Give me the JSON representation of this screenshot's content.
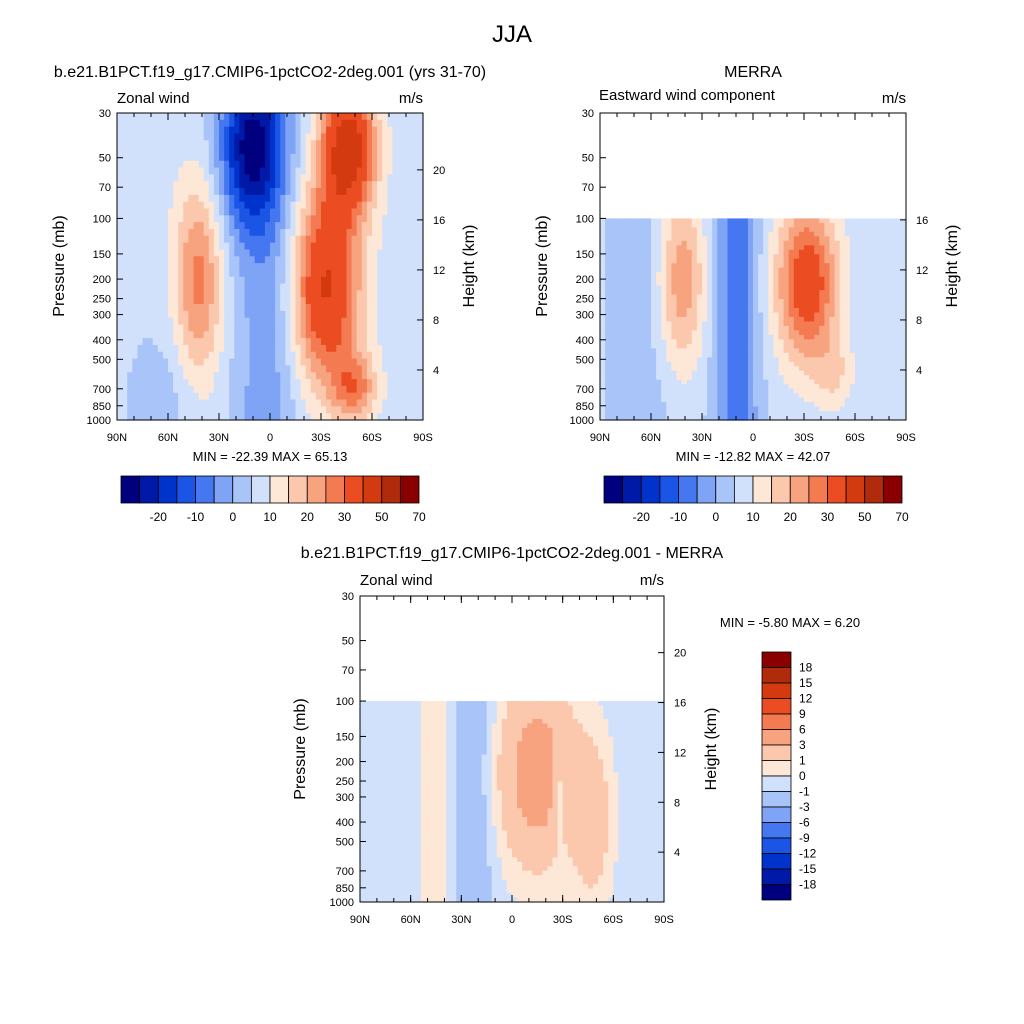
{
  "figure_title": "JJA",
  "chart_data": [
    {
      "type": "heatmap",
      "title": "b.e21.B1PCT.f19_g17.CMIP6-1pctCO2-2deg.001 (yrs 31-70)",
      "left_label": "Zonal wind",
      "units": "m/s",
      "ylabel": "Pressure (mb)",
      "ylabel_right": "Height (km)",
      "x_ticks": [
        "90N",
        "60N",
        "30N",
        "0",
        "30S",
        "60S",
        "90S"
      ],
      "y_ticks": [
        30,
        50,
        70,
        100,
        150,
        200,
        250,
        300,
        400,
        500,
        700,
        850,
        1000
      ],
      "y_ticks_right": [
        20,
        16,
        12,
        8,
        4
      ],
      "xlim": [
        90,
        -90
      ],
      "ylim": [
        1000,
        30
      ],
      "min_text": "MIN = -22.39  MAX =  65.13",
      "colorbar": {
        "orientation": "horizontal",
        "labels": [
          "-20",
          "-10",
          "0",
          "10",
          "20",
          "30",
          "50",
          "70"
        ]
      },
      "features": [
        {
          "lat": 42,
          "p": 200,
          "value": 23,
          "spread_lat": 9,
          "spread_logp": 0.3
        },
        {
          "lat": -32,
          "p": 200,
          "value": 55,
          "spread_lat": 12,
          "spread_logp": 0.3
        },
        {
          "lat": -45,
          "p": 45,
          "value": 62,
          "spread_lat": 10,
          "spread_logp": 0.22
        },
        {
          "lat": 12,
          "p": 40,
          "value": -22,
          "spread_lat": 12,
          "spread_logp": 0.22
        }
      ]
    },
    {
      "type": "heatmap",
      "title": "MERRA",
      "left_label": "Eastward wind component",
      "units": "m/s",
      "ylabel": "Pressure (mb)",
      "ylabel_right": "Height (km)",
      "x_ticks": [
        "90N",
        "60N",
        "30N",
        "0",
        "30S",
        "60S",
        "90S"
      ],
      "y_ticks": [
        30,
        50,
        70,
        100,
        150,
        200,
        250,
        300,
        400,
        500,
        700,
        850,
        1000
      ],
      "y_ticks_right": [
        16,
        12,
        8,
        4
      ],
      "xlim": [
        90,
        -90
      ],
      "ylim": [
        1000,
        30
      ],
      "data_top_p": 100,
      "min_text": "MIN = -12.82  MAX =  42.07",
      "colorbar": {
        "orientation": "horizontal",
        "labels": [
          "-20",
          "-10",
          "0",
          "10",
          "20",
          "30",
          "50",
          "70"
        ]
      }
    },
    {
      "type": "heatmap",
      "title": "b.e21.B1PCT.f19_g17.CMIP6-1pctCO2-2deg.001 - MERRA",
      "left_label": "Zonal wind",
      "units": "m/s",
      "ylabel": "Pressure (mb)",
      "ylabel_right": "Height (km)",
      "x_ticks": [
        "90N",
        "60N",
        "30N",
        "0",
        "30S",
        "60S",
        "90S"
      ],
      "y_ticks": [
        30,
        50,
        70,
        100,
        150,
        200,
        250,
        300,
        400,
        500,
        700,
        850,
        1000
      ],
      "y_ticks_right": [
        20,
        16,
        12,
        8,
        4
      ],
      "xlim": [
        90,
        -90
      ],
      "ylim": [
        1000,
        30
      ],
      "data_top_p": 100,
      "min_text": "MIN =  -5.80  MAX =   6.20",
      "colorbar": {
        "orientation": "vertical",
        "labels": [
          "18",
          "15",
          "12",
          "9",
          "6",
          "3",
          "1",
          "0",
          "-1",
          "-3",
          "-6",
          "-9",
          "-12",
          "-15",
          "-18"
        ]
      }
    }
  ],
  "colors": {
    "palette": [
      "#00007f",
      "#0019a6",
      "#0033cc",
      "#1a55e6",
      "#4477f0",
      "#7fa3f5",
      "#a9c4f8",
      "#d2e1fb",
      "#fde7d7",
      "#fcc8ad",
      "#f8a37f",
      "#f47a52",
      "#ec4c22",
      "#d43a0f",
      "#b02a0c",
      "#8a0000"
    ],
    "background": "#ffffff"
  }
}
